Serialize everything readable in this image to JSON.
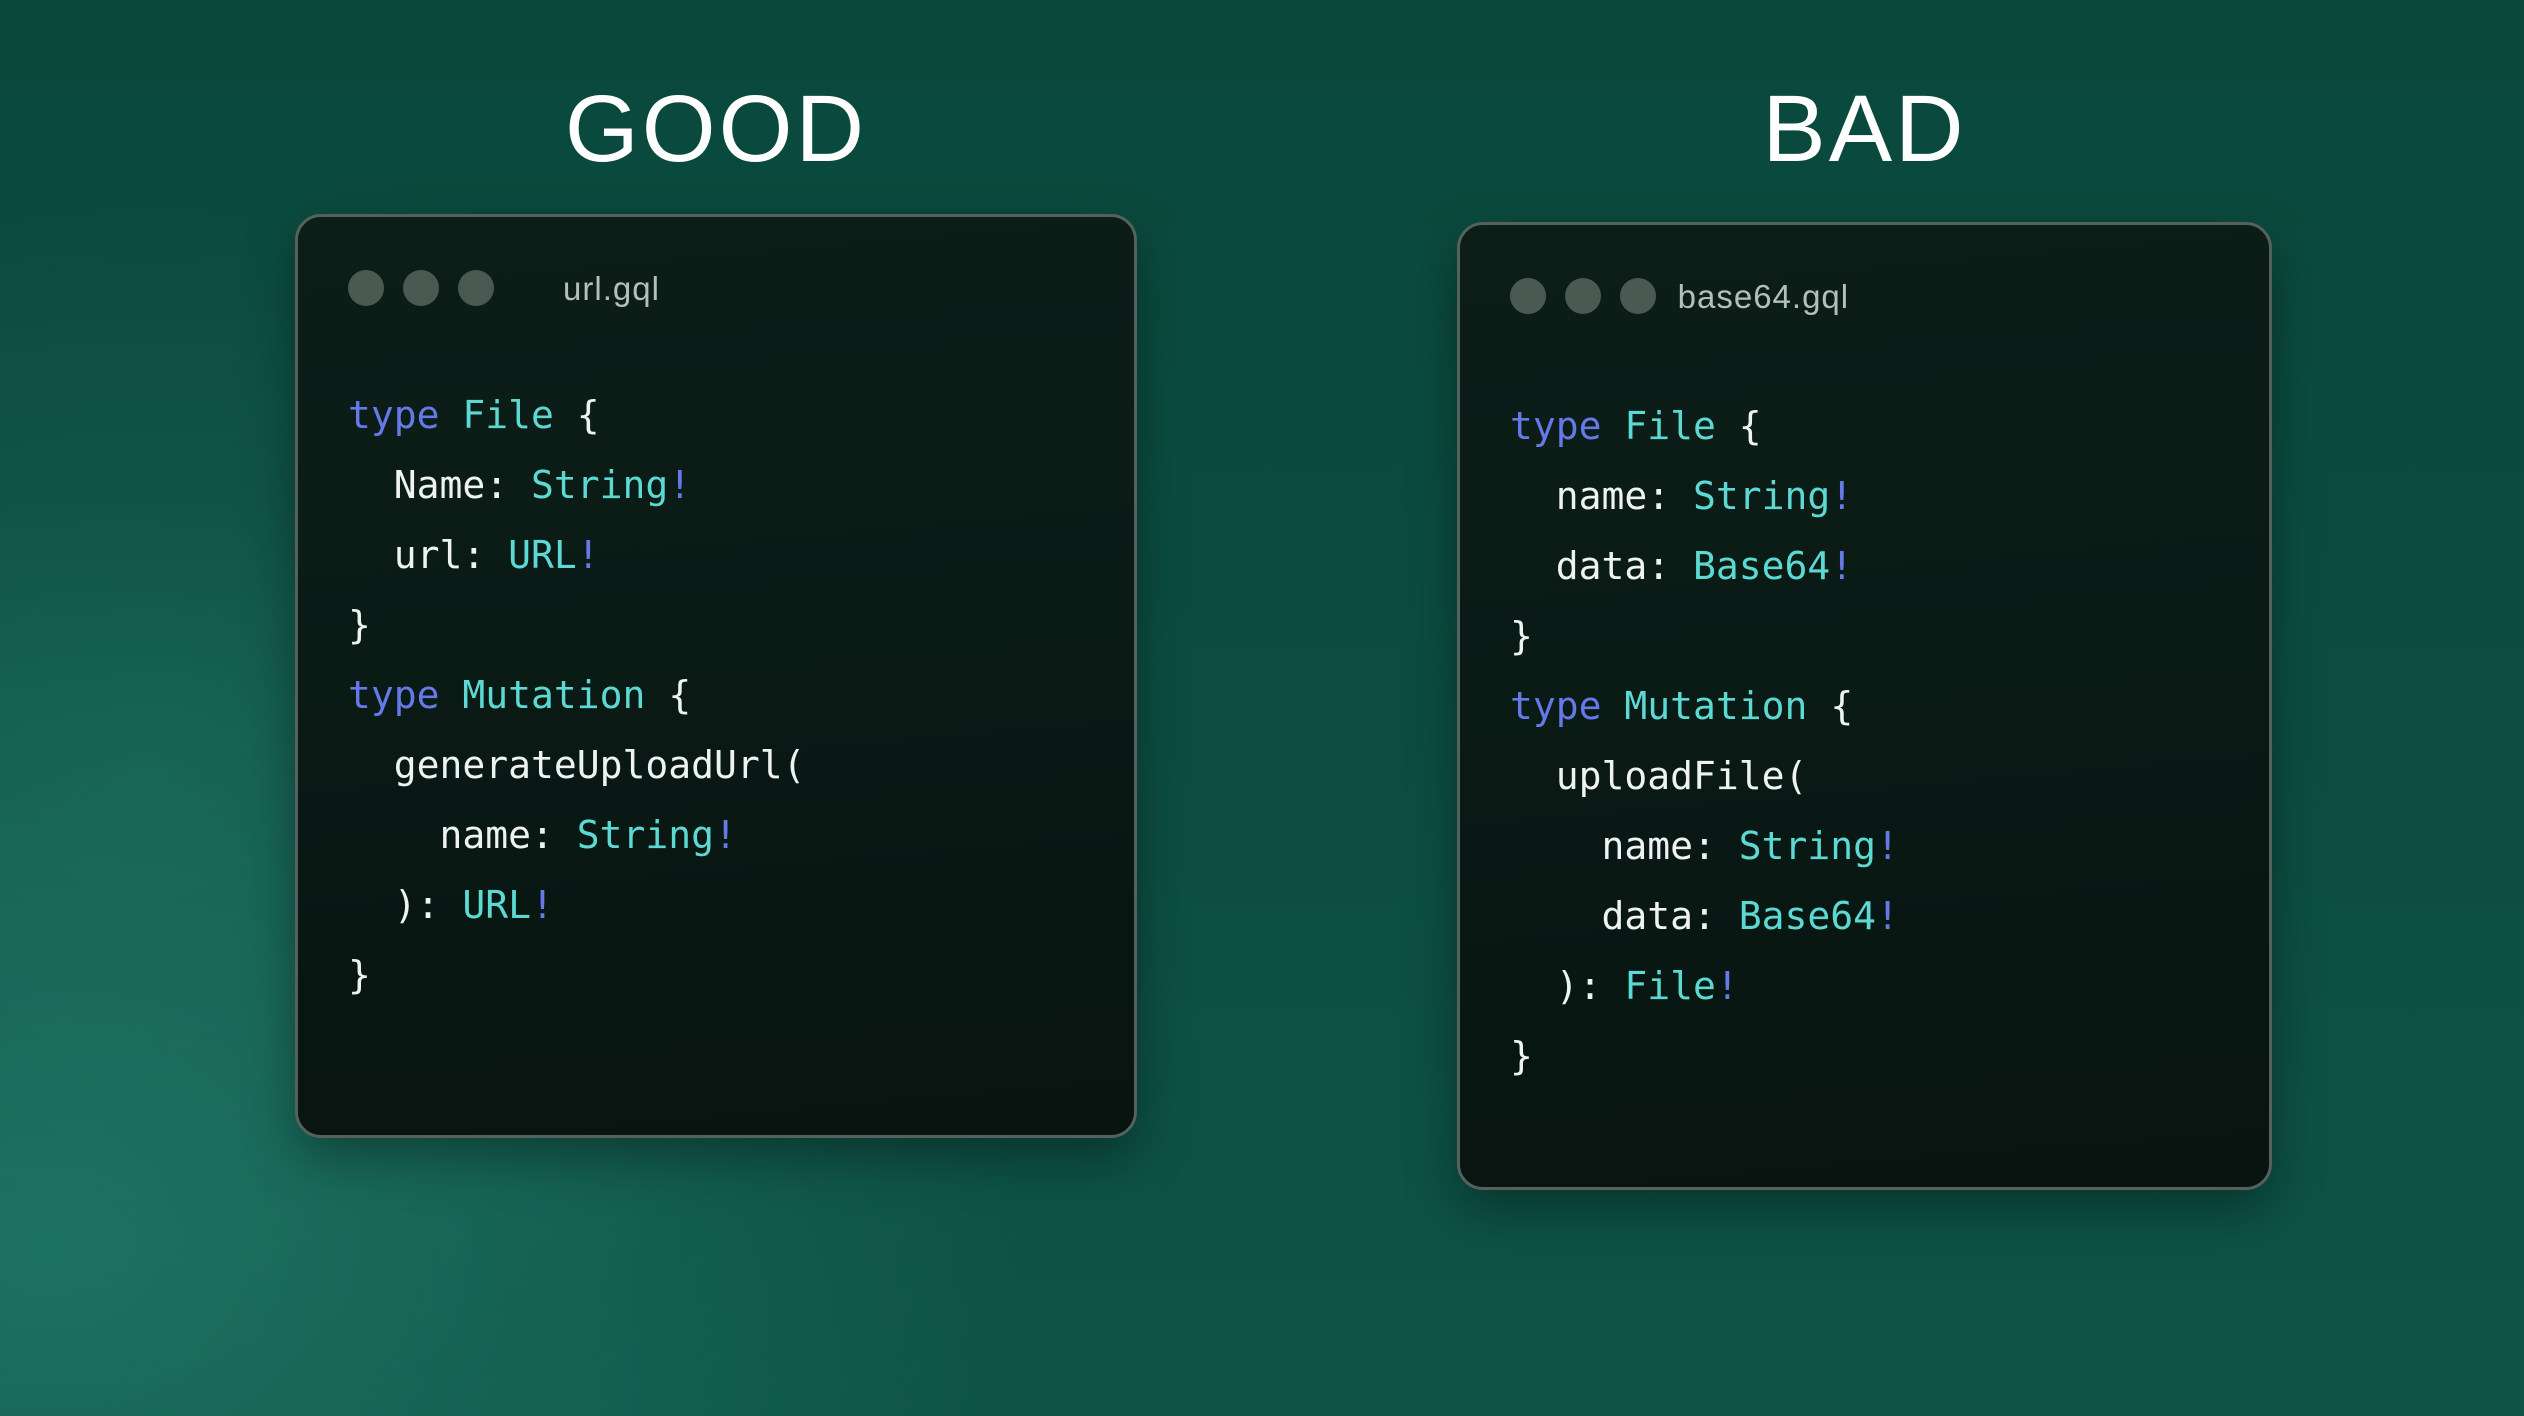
{
  "comparison": {
    "syntax_colors": {
      "keyword": "#6679e9",
      "typename": "#5cd9d3",
      "plain": "#eef3f1"
    },
    "ui_colors": {
      "background_teal": "#0c4e42",
      "background_glow": "#2d9481",
      "window_background": "#0a1a15",
      "window_border": "#54615c",
      "window_dot": "#4b5953",
      "filename_text": "#b4bfbb",
      "title_text": "#ffffff"
    },
    "panels": [
      {
        "verdict": "GOOD",
        "filename": "url.gql",
        "window_dots": 3,
        "code_lines": [
          [
            {
              "s": "keyword",
              "t": "type"
            },
            {
              "s": "plain",
              "t": " "
            },
            {
              "s": "typename",
              "t": "File"
            },
            {
              "s": "plain",
              "t": " {"
            }
          ],
          [
            {
              "s": "plain",
              "t": "  Name: "
            },
            {
              "s": "typename",
              "t": "String"
            },
            {
              "s": "keyword",
              "t": "!"
            }
          ],
          [
            {
              "s": "plain",
              "t": "  url: "
            },
            {
              "s": "typename",
              "t": "URL"
            },
            {
              "s": "keyword",
              "t": "!"
            }
          ],
          [
            {
              "s": "plain",
              "t": "}"
            }
          ],
          [
            {
              "s": "keyword",
              "t": "type"
            },
            {
              "s": "plain",
              "t": " "
            },
            {
              "s": "typename",
              "t": "Mutation"
            },
            {
              "s": "plain",
              "t": " {"
            }
          ],
          [
            {
              "s": "plain",
              "t": "  generateUploadUrl("
            }
          ],
          [
            {
              "s": "plain",
              "t": "    name: "
            },
            {
              "s": "typename",
              "t": "String"
            },
            {
              "s": "keyword",
              "t": "!"
            }
          ],
          [
            {
              "s": "plain",
              "t": "  ): "
            },
            {
              "s": "typename",
              "t": "URL"
            },
            {
              "s": "keyword",
              "t": "!"
            }
          ],
          [
            {
              "s": "plain",
              "t": "}"
            }
          ]
        ]
      },
      {
        "verdict": "BAD",
        "filename": "base64.gql",
        "window_dots": 3,
        "code_lines": [
          [
            {
              "s": "keyword",
              "t": "type"
            },
            {
              "s": "plain",
              "t": " "
            },
            {
              "s": "typename",
              "t": "File"
            },
            {
              "s": "plain",
              "t": " {"
            }
          ],
          [
            {
              "s": "plain",
              "t": "  name: "
            },
            {
              "s": "typename",
              "t": "String"
            },
            {
              "s": "keyword",
              "t": "!"
            }
          ],
          [
            {
              "s": "plain",
              "t": "  data: "
            },
            {
              "s": "typename",
              "t": "Base64"
            },
            {
              "s": "keyword",
              "t": "!"
            }
          ],
          [
            {
              "s": "plain",
              "t": "}"
            }
          ],
          [
            {
              "s": "keyword",
              "t": "type"
            },
            {
              "s": "plain",
              "t": " "
            },
            {
              "s": "typename",
              "t": "Mutation"
            },
            {
              "s": "plain",
              "t": " {"
            }
          ],
          [
            {
              "s": "plain",
              "t": "  uploadFile("
            }
          ],
          [
            {
              "s": "plain",
              "t": "    name: "
            },
            {
              "s": "typename",
              "t": "String"
            },
            {
              "s": "keyword",
              "t": "!"
            }
          ],
          [
            {
              "s": "plain",
              "t": "    data: "
            },
            {
              "s": "typename",
              "t": "Base64"
            },
            {
              "s": "keyword",
              "t": "!"
            }
          ],
          [
            {
              "s": "plain",
              "t": "  ): "
            },
            {
              "s": "typename",
              "t": "File"
            },
            {
              "s": "keyword",
              "t": "!"
            }
          ],
          [
            {
              "s": "plain",
              "t": "}"
            }
          ]
        ]
      }
    ]
  }
}
